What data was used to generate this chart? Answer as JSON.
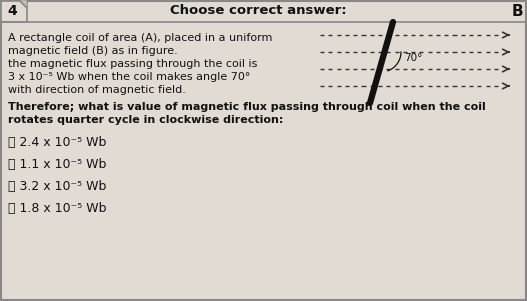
{
  "background_color": "#c8c0b8",
  "card_color": "#e2dbd4",
  "question_number": "4",
  "header": "Choose correct answer:",
  "correct_label": "B",
  "body_line1": "A rectangle coil of area (A), placed in a uniform",
  "body_line2": "magnetic field (B) as in figure.",
  "body_line3": "the magnetic flux passing through the coil is",
  "body_line4": "3 x 10⁻⁵ Wb when the coil makes angle 70°",
  "body_line5": "with direction of magnetic field.",
  "question_line1": "Therefore; what is value of magnetic flux passing through coil when the coil",
  "question_line2": "rotates quarter cycle in clockwise direction:",
  "option_a": "ⓐ 2.4 x 10⁻⁵ Wb",
  "option_b": "ⓑ 1.1 x 10⁻⁵ Wb",
  "option_c": "ⓒ 3.2 x 10⁻⁵ Wb",
  "option_d": "ⓓ 1.8 x 10⁻⁵ Wb",
  "text_color": "#111111",
  "arrow_color": "#333333",
  "coil_color": "#111111",
  "fig_width": 5.27,
  "fig_height": 3.01,
  "dpi": 100
}
